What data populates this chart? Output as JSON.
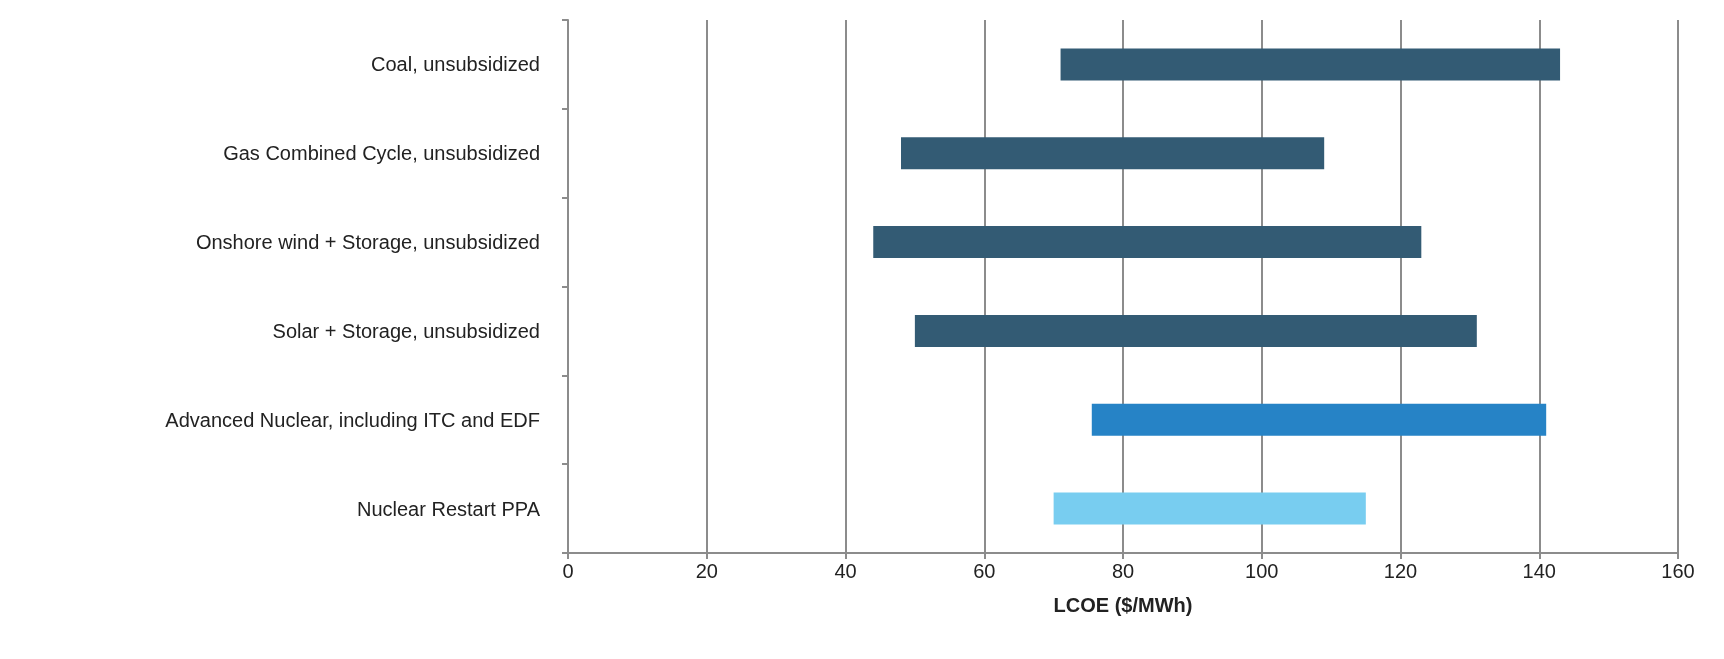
{
  "chart_data": {
    "type": "bar",
    "orientation": "horizontal",
    "xlabel": "LCOE ($/MWh)",
    "categories": [
      "Coal, unsubsidized",
      "Gas Combined Cycle, unsubsidized",
      "Onshore wind + Storage, unsubsidized",
      "Solar + Storage, unsubsidized",
      "Advanced Nuclear, including ITC and EDF",
      "Nuclear Restart PPA"
    ],
    "base": [
      71,
      48,
      44,
      50,
      75.5,
      70
    ],
    "values": [
      72,
      61,
      79,
      81,
      65.5,
      45
    ],
    "colors": [
      "#335b74",
      "#335b74",
      "#335b74",
      "#335b74",
      "#2683c6",
      "#78cdf0"
    ],
    "xlim": [
      0,
      160
    ],
    "xticks": [
      0,
      20,
      40,
      60,
      80,
      100,
      120,
      140,
      160
    ],
    "grid": "x"
  }
}
